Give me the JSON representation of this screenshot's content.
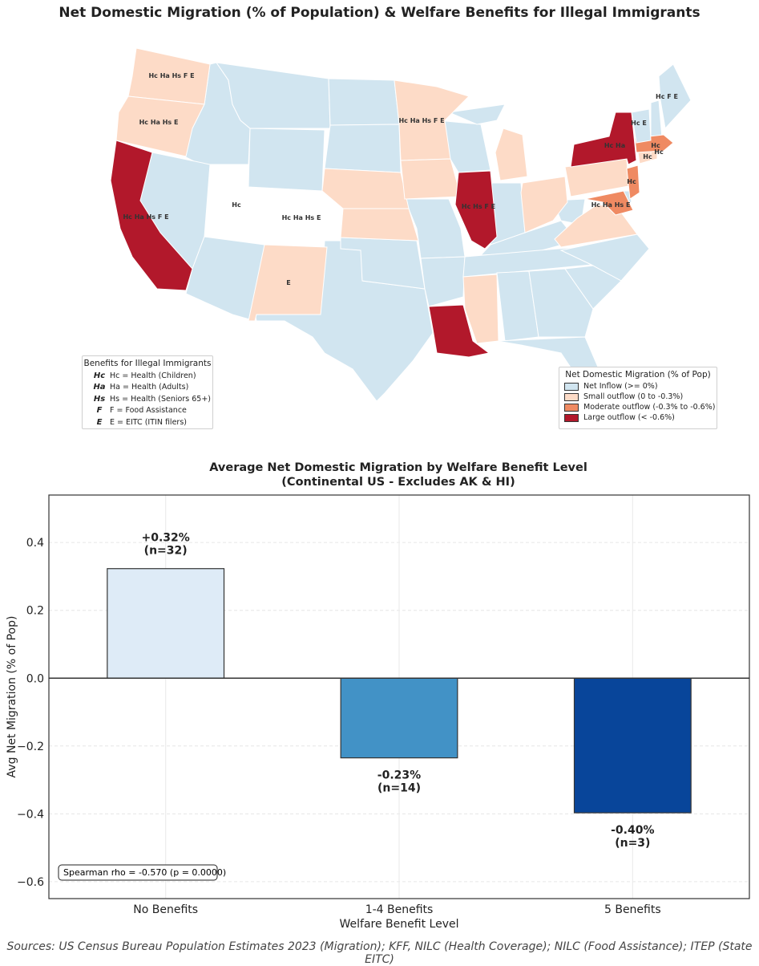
{
  "title": "Net Domestic Migration (% of Population) & Welfare Benefits for Illegal Immigrants",
  "colors": {
    "net_inflow": "#d1e5f0",
    "small_outflow": "#fddbc7",
    "moderate_outflow": "#ef8a62",
    "large_outflow": "#b2182b"
  },
  "map": {
    "states": [
      {
        "name": "Washington",
        "category": "small_outflow",
        "benefits": "Hc Ha Hs F E"
      },
      {
        "name": "Oregon",
        "category": "small_outflow",
        "benefits": "Hc Ha Hs E"
      },
      {
        "name": "California",
        "category": "large_outflow",
        "benefits": "Hc Ha Hs F E"
      },
      {
        "name": "Utah",
        "category": "net_inflow",
        "benefits": "Hc"
      },
      {
        "name": "Colorado",
        "category": "net_inflow",
        "benefits": "Hc Ha Hs E"
      },
      {
        "name": "New Mexico",
        "category": "small_outflow",
        "benefits": "E"
      },
      {
        "name": "Minnesota",
        "category": "small_outflow",
        "benefits": "Hc Ha Hs F E"
      },
      {
        "name": "Illinois",
        "category": "large_outflow",
        "benefits": "Hc Hs F E"
      },
      {
        "name": "New York",
        "category": "large_outflow",
        "benefits": "Hc Ha"
      },
      {
        "name": "Maine",
        "category": "net_inflow",
        "benefits": "Hc F E"
      },
      {
        "name": "Vermont",
        "category": "net_inflow",
        "benefits": "Hc E"
      },
      {
        "name": "Massachusetts",
        "category": "moderate_outflow",
        "benefits": "Hc"
      },
      {
        "name": "Connecticut",
        "category": "small_outflow",
        "benefits": "Hc"
      },
      {
        "name": "Rhode Island",
        "category": "small_outflow",
        "benefits": "Hc"
      },
      {
        "name": "New Jersey",
        "category": "moderate_outflow",
        "benefits": "Hc"
      },
      {
        "name": "Maryland",
        "category": "moderate_outflow",
        "benefits": "Hc Ha Hs E"
      }
    ],
    "benefit_legend": {
      "title": "Benefits for Illegal Immigrants",
      "items": [
        {
          "code": "Hc",
          "text": "Hc = Health (Children)"
        },
        {
          "code": "Ha",
          "text": "Ha = Health (Adults)"
        },
        {
          "code": "Hs",
          "text": "Hs = Health (Seniors 65+)"
        },
        {
          "code": "F",
          "text": "F = Food Assistance"
        },
        {
          "code": "E",
          "text": "E = EITC (ITIN filers)"
        }
      ]
    },
    "migration_legend": {
      "title": "Net Domestic Migration (% of Pop)",
      "items": [
        {
          "label": "Net Inflow (>= 0%)",
          "color": "#d1e5f0"
        },
        {
          "label": "Small outflow (0 to -0.3%)",
          "color": "#fddbc7"
        },
        {
          "label": "Moderate outflow (-0.3% to -0.6%)",
          "color": "#ef8a62"
        },
        {
          "label": "Large outflow (< -0.6%)",
          "color": "#b2182b"
        }
      ]
    }
  },
  "chart_data": {
    "type": "bar",
    "title": "Average Net Domestic Migration by Welfare Benefit Level",
    "subtitle": "(Continental US - Excludes AK & HI)",
    "categories": [
      "No Benefits",
      "1-4 Benefits",
      "5 Benefits"
    ],
    "values": [
      0.323,
      -0.235,
      -0.397
    ],
    "value_labels": [
      "+0.32%",
      "-0.23%",
      "-0.40%"
    ],
    "n_labels": [
      "(n=32)",
      "(n=14)",
      "(n=3)"
    ],
    "bar_colors": [
      "#deebf7",
      "#4292c6",
      "#08459a"
    ],
    "xlabel": "Welfare Benefit Level",
    "ylabel": "Avg Net Migration (% of Pop)",
    "ylim": [
      -0.65,
      0.54
    ],
    "yticks": [
      -0.6,
      -0.4,
      -0.2,
      0.0,
      0.2,
      0.4
    ],
    "ytick_labels": [
      "−0.6",
      "−0.4",
      "−0.2",
      "0.0",
      "0.2",
      "0.4"
    ],
    "grid": true,
    "annotation": "Spearman rho = -0.570 (p = 0.0000)"
  },
  "sources": "Sources: US Census Bureau Population Estimates 2023 (Migration); KFF, NILC (Health Coverage); NILC (Food Assistance); ITEP (State EITC)"
}
